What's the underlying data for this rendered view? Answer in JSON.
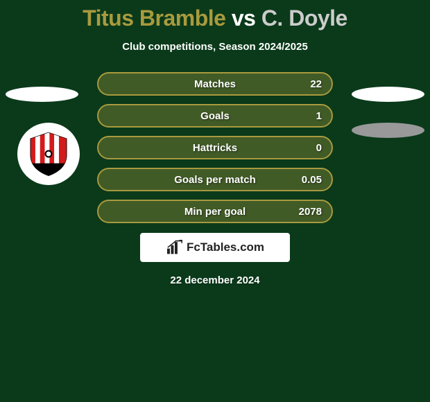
{
  "title": {
    "player1": "Titus Bramble",
    "vs": "vs",
    "player2": "C. Doyle",
    "player1_color": "#a89a3e",
    "vs_color": "#ffffff",
    "player2_color": "#cccccc",
    "fontsize": 32
  },
  "subtitle": "Club competitions, Season 2024/2025",
  "background_color": "#0a3a1a",
  "ellipses": {
    "top_left_color": "#ffffff",
    "top_right_color": "#ffffff",
    "bottom_right_color": "#999999"
  },
  "badge": {
    "bg": "#ffffff",
    "stripe_colors": [
      "#d31b1b",
      "#ffffff"
    ],
    "base_color": "#000000"
  },
  "stats": {
    "row_border_color": "#a89a3e",
    "row_bg_color": "rgba(168,154,62,0.35)",
    "label_color": "#ffffff",
    "value_color": "#ffffff",
    "label_fontsize": 15,
    "rows": [
      {
        "label": "Matches",
        "value": "22"
      },
      {
        "label": "Goals",
        "value": "1"
      },
      {
        "label": "Hattricks",
        "value": "0"
      },
      {
        "label": "Goals per match",
        "value": "0.05"
      },
      {
        "label": "Min per goal",
        "value": "2078"
      }
    ]
  },
  "watermark": {
    "text": "FcTables.com",
    "bg": "#ffffff",
    "text_color": "#222222",
    "icon_color": "#222222"
  },
  "date": "22 december 2024"
}
